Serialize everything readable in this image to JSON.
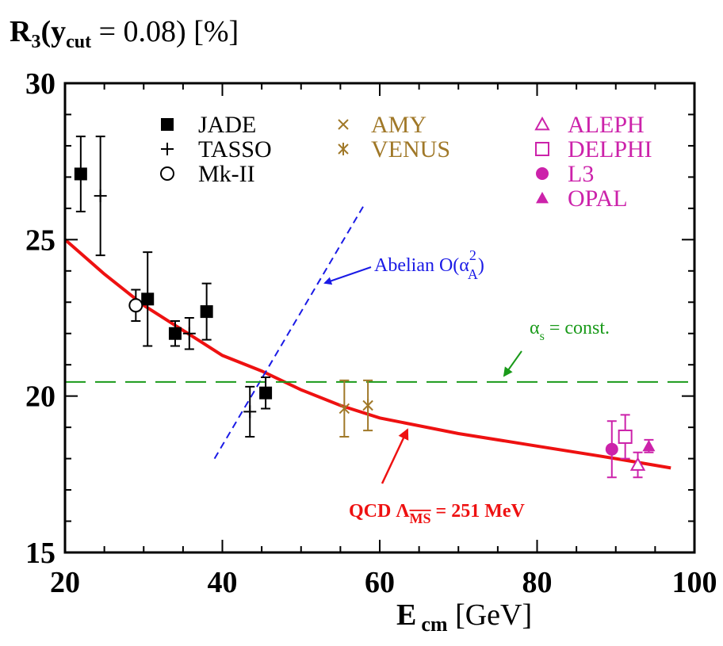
{
  "chart_data": {
    "type": "scatter",
    "title": "",
    "ylabel": {
      "main": "R",
      "sub": "3",
      "open": "(y",
      "sub2": "cut",
      "rest": " = 0.08) [%]"
    },
    "xlabel": {
      "main": "E",
      "sub": "cm",
      "rest": " [GeV]"
    },
    "xlim": [
      20,
      100
    ],
    "ylim": [
      15,
      30
    ],
    "xticks": [
      20,
      40,
      60,
      80,
      100
    ],
    "yticks": [
      15,
      20,
      25,
      30
    ],
    "xtick_labels": [
      "20",
      "40",
      "60",
      "80",
      "100"
    ],
    "ytick_labels": [
      "15",
      "20",
      "25",
      "30"
    ],
    "colors": {
      "black": "#000000",
      "brown": "#a07828",
      "magenta": "#cc22aa",
      "blue": "#1a1ae6",
      "green": "#1a9a1a",
      "red": "#ee1111"
    },
    "legend": [
      {
        "label": "JADE",
        "marker": "filled-square",
        "color": "#000000"
      },
      {
        "label": "TASSO",
        "marker": "plus",
        "color": "#000000"
      },
      {
        "label": "Mk-II",
        "marker": "open-circle",
        "color": "#000000"
      },
      {
        "label": "AMY",
        "marker": "x",
        "color": "#a07828"
      },
      {
        "label": "VENUS",
        "marker": "asterisk",
        "color": "#a07828"
      },
      {
        "label": "ALEPH",
        "marker": "open-triangle",
        "color": "#cc22aa"
      },
      {
        "label": "DELPHI",
        "marker": "open-square",
        "color": "#cc22aa"
      },
      {
        "label": "L3",
        "marker": "filled-circle",
        "color": "#cc22aa"
      },
      {
        "label": "OPAL",
        "marker": "filled-triangle",
        "color": "#cc22aa"
      }
    ],
    "series": [
      {
        "name": "JADE",
        "marker": "filled-square",
        "color": "#000000",
        "points": [
          {
            "x": 22.0,
            "y": 27.1,
            "yerr": [
              1.2,
              1.2
            ]
          },
          {
            "x": 30.5,
            "y": 23.1,
            "yerr": [
              1.5,
              1.5
            ]
          },
          {
            "x": 34.0,
            "y": 22.0,
            "yerr": [
              0.4,
              0.4
            ]
          },
          {
            "x": 38.0,
            "y": 22.7,
            "yerr": [
              0.9,
              0.9
            ]
          },
          {
            "x": 45.5,
            "y": 20.1,
            "yerr": [
              0.5,
              0.5
            ]
          }
        ]
      },
      {
        "name": "TASSO",
        "marker": "plus",
        "color": "#000000",
        "points": [
          {
            "x": 24.5,
            "y": 26.4,
            "yerr": [
              1.9,
              1.9
            ]
          },
          {
            "x": 35.8,
            "y": 22.0,
            "yerr": [
              0.5,
              0.5
            ]
          },
          {
            "x": 43.5,
            "y": 19.5,
            "yerr": [
              0.8,
              0.8
            ]
          }
        ]
      },
      {
        "name": "Mk-II",
        "marker": "open-circle",
        "color": "#000000",
        "points": [
          {
            "x": 29.0,
            "y": 22.9,
            "yerr": [
              0.5,
              0.5
            ]
          }
        ]
      },
      {
        "name": "AMY",
        "marker": "x",
        "color": "#a07828",
        "points": [
          {
            "x": 55.5,
            "y": 19.6,
            "yerr": [
              0.9,
              0.9
            ]
          }
        ]
      },
      {
        "name": "VENUS",
        "marker": "asterisk",
        "color": "#a07828",
        "points": [
          {
            "x": 58.5,
            "y": 19.7,
            "yerr": [
              0.8,
              0.8
            ]
          }
        ]
      },
      {
        "name": "ALEPH",
        "marker": "open-triangle",
        "color": "#cc22aa",
        "points": [
          {
            "x": 92.8,
            "y": 17.8,
            "yerr": [
              0.4,
              0.4
            ]
          }
        ]
      },
      {
        "name": "DELPHI",
        "marker": "open-square",
        "color": "#cc22aa",
        "points": [
          {
            "x": 91.2,
            "y": 18.7,
            "yerr": [
              0.7,
              0.7
            ]
          }
        ]
      },
      {
        "name": "L3",
        "marker": "filled-circle",
        "color": "#cc22aa",
        "points": [
          {
            "x": 89.5,
            "y": 18.3,
            "yerr": [
              0.9,
              0.9
            ]
          }
        ]
      },
      {
        "name": "OPAL",
        "marker": "filled-triangle",
        "color": "#cc22aa",
        "points": [
          {
            "x": 94.2,
            "y": 18.4,
            "yerr": [
              0.2,
              0.2
            ]
          }
        ]
      }
    ],
    "curves": [
      {
        "name": "QCD",
        "style": "solid",
        "color": "#ee1111",
        "x": [
          20,
          25,
          30,
          35,
          40,
          45,
          50,
          55,
          60,
          70,
          80,
          90,
          97
        ],
        "y": [
          25.0,
          23.9,
          22.9,
          22.1,
          21.3,
          20.8,
          20.2,
          19.7,
          19.3,
          18.8,
          18.4,
          18.0,
          17.7
        ]
      },
      {
        "name": "Abelian",
        "style": "dashed",
        "color": "#1a1ae6",
        "x": [
          39,
          58
        ],
        "y": [
          18.0,
          26.1
        ]
      },
      {
        "name": "alpha_s const",
        "style": "long-dashed",
        "color": "#1a9a1a",
        "x": [
          20,
          100
        ],
        "y": [
          20.45,
          20.45
        ]
      }
    ],
    "annotations": {
      "abelian": {
        "text": "Abelian O(α",
        "sup": "2",
        "sub": "A",
        "close": ")"
      },
      "alphas": {
        "text": "α",
        "sub": "s",
        "rest": " = const."
      },
      "qcd": {
        "text": "QCD  Λ",
        "sub": "MS",
        "rest": " = 251 MeV"
      }
    },
    "grid": false,
    "legend_position": "top"
  }
}
